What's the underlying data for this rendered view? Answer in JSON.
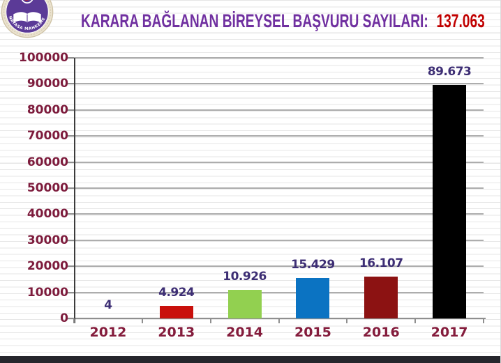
{
  "header": {
    "title": "KARARA BAĞLANAN BİREYSEL BAŞVURU SAYILARI:",
    "total": "137.063",
    "logo_arc_text": "ANAYASA MAHKEMESİ"
  },
  "chart_data": {
    "type": "bar",
    "title": "KARARA BAĞLANAN BİREYSEL BAŞVURU SAYILARI: 137.063",
    "categories": [
      "2012",
      "2013",
      "2014",
      "2015",
      "2016",
      "2017"
    ],
    "values": [
      4,
      4924,
      10926,
      15429,
      16107,
      89673
    ],
    "value_labels": [
      "4",
      "4.924",
      "10.926",
      "15.429",
      "16.107",
      "89.673"
    ],
    "bar_colors": [
      null,
      "#C9100C",
      "#92D050",
      "#0B73C2",
      "#8C1212",
      "#000000"
    ],
    "total_value": 137063,
    "xlabel": "",
    "ylabel": "",
    "ylim": [
      0,
      100000
    ],
    "ytick_values": [
      0,
      10000,
      20000,
      30000,
      40000,
      50000,
      60000,
      70000,
      80000,
      90000,
      100000
    ],
    "ytick_labels": [
      "0",
      "10000",
      "20000",
      "30000",
      "40000",
      "50000",
      "60000",
      "70000",
      "80000",
      "90000",
      "100000"
    ],
    "grid": true,
    "legend": false
  },
  "palette": {
    "title_purple": "#7030A0",
    "total_red": "#C00000",
    "axis_text_maroon": "#7D1B3C",
    "value_text_indigo": "#3D2E74",
    "gridline_gray": "#ADADAD",
    "axis_line_dark": "#3C3C3C",
    "baseline_gray": "#8F8F8F",
    "footer_bar_dark": "#26262C",
    "logo_purple": "#5B3A97",
    "logo_ring_cream": "#EBE3D0"
  }
}
